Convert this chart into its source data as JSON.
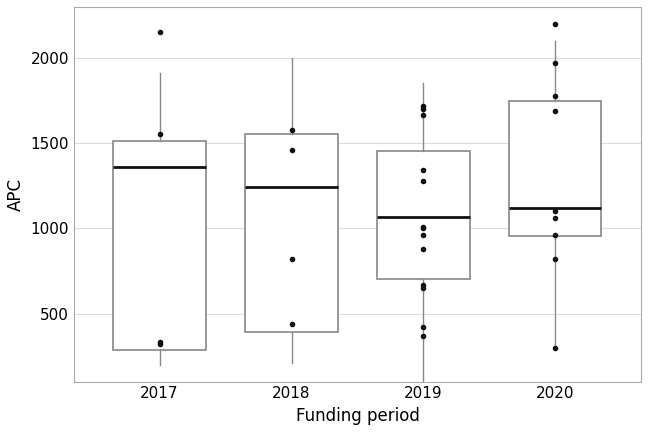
{
  "xlabel": "Funding period",
  "ylabel": "APC",
  "box_data": {
    "2017": {
      "whislo": 195,
      "q1": 285,
      "med": 1360,
      "q3": 1510,
      "whishi": 1910,
      "fliers": [
        320,
        330,
        1555,
        2150
      ]
    },
    "2018": {
      "whislo": 210,
      "q1": 390,
      "med": 1245,
      "q3": 1555,
      "whishi": 2000,
      "fliers": [
        440,
        820,
        1460,
        1580
      ]
    },
    "2019": {
      "whislo": 100,
      "q1": 700,
      "med": 1065,
      "q3": 1455,
      "whishi": 1855,
      "fliers": [
        370,
        420,
        650,
        670,
        880,
        960,
        1000,
        1010,
        1280,
        1340,
        1665,
        1700,
        1720
      ]
    },
    "2020": {
      "whislo": 295,
      "q1": 955,
      "med": 1120,
      "q3": 1745,
      "whishi": 2100,
      "fliers": [
        300,
        820,
        960,
        1060,
        1100,
        1690,
        1780,
        1970,
        2200
      ]
    }
  },
  "categories": [
    "2017",
    "2018",
    "2019",
    "2020"
  ],
  "ylim": [
    100,
    2300
  ],
  "yticks": [
    500,
    1000,
    1500,
    2000
  ],
  "box_color": "white",
  "box_edge_color": "#888888",
  "median_color": "#111111",
  "whisker_color": "#888888",
  "flier_color": "#111111",
  "grid_color": "#dddddd",
  "bg_color": "white",
  "box_width": 0.7,
  "xlabel_fontsize": 12,
  "ylabel_fontsize": 12,
  "tick_fontsize": 11
}
